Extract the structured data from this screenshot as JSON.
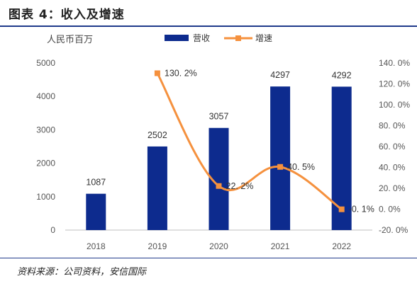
{
  "page": {
    "title": "图表 4：收入及增速",
    "source": "资料来源：公司资料，安信国际"
  },
  "colors": {
    "bar": "#0d2b8e",
    "line": "#f5913e",
    "rule": "#1f3a8a"
  },
  "chart_data": {
    "type": "bar+line",
    "categories": [
      "2018",
      "2019",
      "2020",
      "2021",
      "2022"
    ],
    "series": [
      {
        "name": "营收",
        "type": "bar",
        "axis": "left",
        "values": [
          1087,
          2502,
          3057,
          4297,
          4292
        ],
        "labels": [
          "1087",
          "2502",
          "3057",
          "4297",
          "4292"
        ]
      },
      {
        "name": "增速",
        "type": "line",
        "axis": "right",
        "values": [
          null,
          130.2,
          22.2,
          40.5,
          -0.1
        ],
        "labels": [
          "",
          "130. 2%",
          "22. 2%",
          "40. 5%",
          "-0. 1%"
        ]
      }
    ],
    "left_axis": {
      "unit": "人民币百万",
      "ylim": [
        0,
        5000
      ],
      "ticks": [
        0,
        1000,
        2000,
        3000,
        4000,
        5000
      ],
      "tick_labels": [
        "0",
        "1000",
        "2000",
        "3000",
        "4000",
        "5000"
      ]
    },
    "right_axis": {
      "ylim": [
        -20,
        140
      ],
      "ticks": [
        -20,
        0,
        20,
        40,
        60,
        80,
        100,
        120,
        140
      ],
      "tick_labels": [
        "-20. 0%",
        "0. 0%",
        "20. 0%",
        "40. 0%",
        "60. 0%",
        "80. 0%",
        "100. 0%",
        "120. 0%",
        "140. 0%"
      ]
    },
    "legend": {
      "position": "top-center"
    },
    "grid": false
  }
}
